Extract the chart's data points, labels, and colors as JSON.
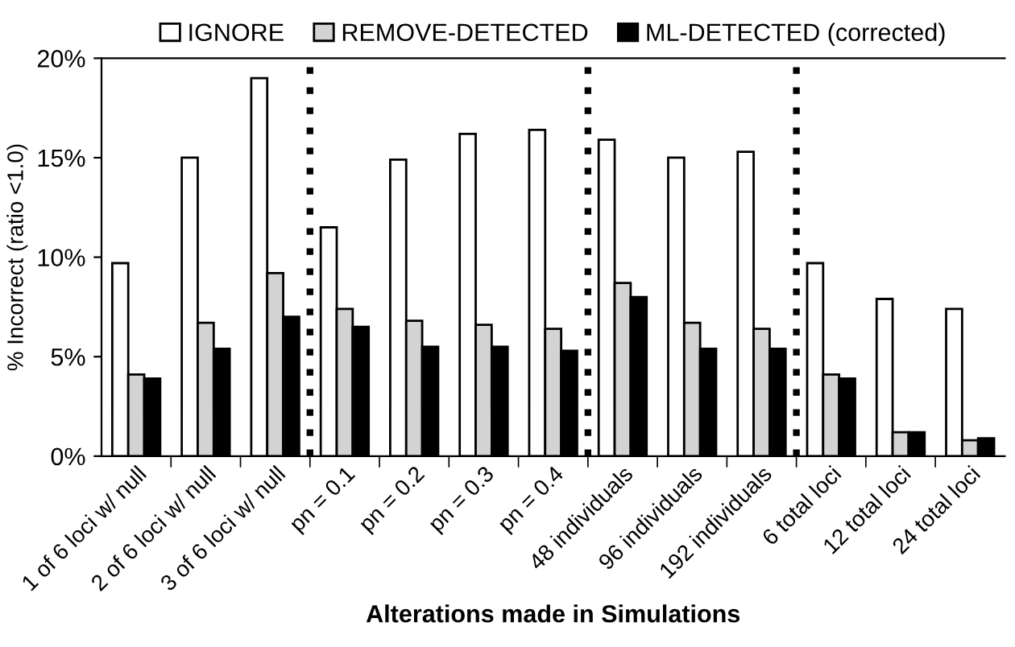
{
  "chart_data": {
    "type": "bar",
    "xlabel": "Alterations made in Simulations",
    "ylabel": "% Incorrect (ratio <1.0)",
    "categories": [
      "1 of 6 loci w/ null",
      "2 of 6 loci w/ null",
      "3 of 6 loci w/ null",
      "pn = 0.1",
      "pn = 0.2",
      "pn = 0.3",
      "pn = 0.4",
      "48 individuals",
      "96 individuals",
      "192 individuals",
      "6 total loci",
      "12 total loci",
      "24 total loci"
    ],
    "series": [
      {
        "name": "IGNORE",
        "color": "#ffffff",
        "values": [
          9.7,
          15.0,
          19.0,
          11.5,
          14.9,
          16.2,
          16.4,
          15.9,
          15.0,
          15.3,
          9.7,
          7.9,
          7.4
        ]
      },
      {
        "name": "REMOVE-DETECTED",
        "color": "#d3d3d3",
        "values": [
          4.1,
          6.7,
          9.2,
          7.4,
          6.8,
          6.6,
          6.4,
          8.7,
          6.7,
          6.4,
          4.1,
          1.2,
          0.8
        ]
      },
      {
        "name": "ML-DETECTED (corrected)",
        "color": "#000000",
        "values": [
          3.9,
          5.4,
          7.0,
          6.5,
          5.5,
          5.5,
          5.3,
          8.0,
          5.4,
          5.4,
          3.9,
          1.2,
          0.9
        ]
      }
    ],
    "ylim": [
      0,
      20
    ],
    "yticks": [
      {
        "value": 0,
        "label": "0%"
      },
      {
        "value": 5,
        "label": "5%"
      },
      {
        "value": 10,
        "label": "10%"
      },
      {
        "value": 15,
        "label": "15%"
      },
      {
        "value": 20,
        "label": "20%"
      }
    ],
    "grid": false,
    "legend": "top"
  }
}
